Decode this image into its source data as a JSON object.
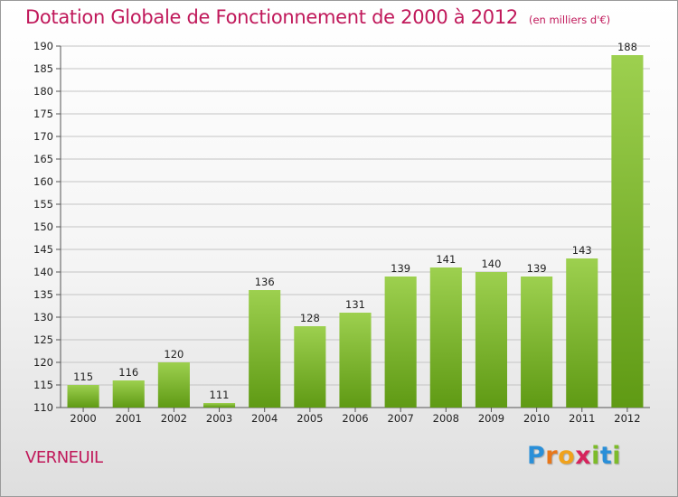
{
  "title": "Dotation Globale de Fonctionnement de 2000 à 2012",
  "unit_label": "(en milliers d'€)",
  "commune": "VERNEUIL",
  "logo": {
    "text": "Proxiti",
    "letters": [
      {
        "ch": "P",
        "color": "#2a8fd8"
      },
      {
        "ch": "r",
        "color": "#e8771a"
      },
      {
        "ch": "o",
        "color": "#f0a21c"
      },
      {
        "ch": "x",
        "color": "#d6245c"
      },
      {
        "ch": "i",
        "color": "#7dbb2a"
      },
      {
        "ch": "t",
        "color": "#2a8fd8"
      },
      {
        "ch": "i",
        "color": "#7dbb2a"
      }
    ]
  },
  "colors": {
    "title": "#c0185a",
    "bar_light": "#9dd04f",
    "bar_dark": "#5f9a14",
    "grid": "#c4c4c4"
  },
  "chart_data": {
    "type": "bar",
    "title": "Dotation Globale de Fonctionnement de 2000 à 2012",
    "subtitle": "(en milliers d'€)",
    "xlabel": "",
    "ylabel": "",
    "categories": [
      "2000",
      "2001",
      "2002",
      "2003",
      "2004",
      "2005",
      "2006",
      "2007",
      "2008",
      "2009",
      "2010",
      "2011",
      "2012"
    ],
    "values": [
      115,
      116,
      120,
      111,
      136,
      128,
      131,
      139,
      141,
      140,
      139,
      143,
      188
    ],
    "ylim": [
      110,
      190
    ],
    "ytick_step": 5,
    "grid": true,
    "legend": "none"
  }
}
